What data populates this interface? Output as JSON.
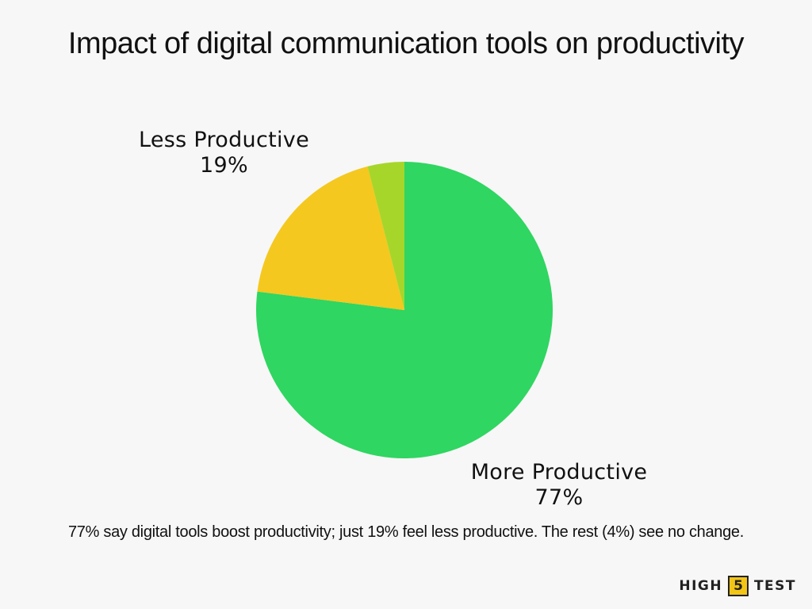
{
  "title": "Impact of digital communication tools on productivity",
  "chart_data": {
    "type": "pie",
    "title": "Impact of digital communication tools on productivity",
    "slices": [
      {
        "label": "More Productive",
        "value": 77,
        "value_label": "77%",
        "color": "#2fd661"
      },
      {
        "label": "Less Productive",
        "value": 19,
        "value_label": "19%",
        "color": "#f4c81e"
      },
      {
        "label": "",
        "value": 4,
        "value_label": "",
        "color": "#a7d62a"
      }
    ],
    "start": "top",
    "direction": "clockwise"
  },
  "caption": "77% say digital tools boost productivity; just 19% feel less productive. The rest (4%) see no change.",
  "logo": {
    "left": "HIGH",
    "box": "5",
    "right": "TEST"
  }
}
